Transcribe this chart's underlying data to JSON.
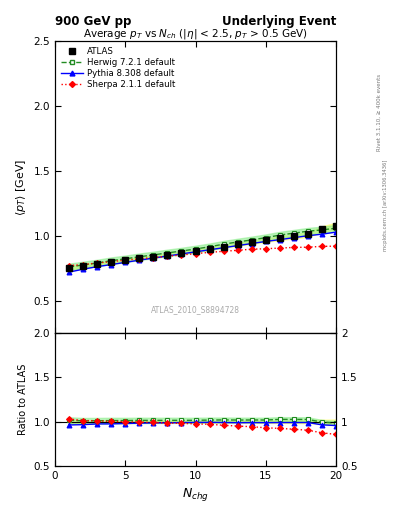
{
  "title_left": "900 GeV pp",
  "title_right": "Underlying Event",
  "plot_title": "Average $p_T$ vs $N_{ch}$ ($|\\eta|$ < 2.5, $p_T$ > 0.5 GeV)",
  "xlabel": "$N_{chg}$",
  "ylabel_main": "$\\langle p_T \\rangle$ [GeV]",
  "ylabel_ratio": "Ratio to ATLAS",
  "watermark": "ATLAS_2010_S8894728",
  "right_label_top": "Rivet 3.1.10, ≥ 400k events",
  "right_label_bot": "mcplots.cern.ch [arXiv:1306.3436]",
  "ylim_main": [
    0.25,
    2.5
  ],
  "ylim_ratio": [
    0.5,
    2.0
  ],
  "xlim": [
    0,
    20
  ],
  "atlas_x": [
    1,
    2,
    3,
    4,
    5,
    6,
    7,
    8,
    9,
    10,
    11,
    12,
    13,
    14,
    15,
    16,
    17,
    18,
    19,
    20
  ],
  "atlas_y": [
    0.748,
    0.768,
    0.782,
    0.798,
    0.812,
    0.826,
    0.84,
    0.855,
    0.869,
    0.884,
    0.899,
    0.917,
    0.935,
    0.95,
    0.967,
    0.98,
    0.995,
    1.01,
    1.05,
    1.075
  ],
  "atlas_yerr": [
    0.015,
    0.012,
    0.01,
    0.009,
    0.009,
    0.008,
    0.008,
    0.008,
    0.008,
    0.009,
    0.009,
    0.01,
    0.01,
    0.012,
    0.013,
    0.014,
    0.015,
    0.018,
    0.022,
    0.025
  ],
  "herwig_x": [
    1,
    2,
    3,
    4,
    5,
    6,
    7,
    8,
    9,
    10,
    11,
    12,
    13,
    14,
    15,
    16,
    17,
    18,
    19,
    20
  ],
  "herwig_y": [
    0.76,
    0.775,
    0.79,
    0.808,
    0.822,
    0.838,
    0.852,
    0.868,
    0.882,
    0.898,
    0.915,
    0.935,
    0.952,
    0.968,
    0.985,
    1.005,
    1.02,
    1.035,
    1.045,
    1.058
  ],
  "pythia_x": [
    1,
    2,
    3,
    4,
    5,
    6,
    7,
    8,
    9,
    10,
    11,
    12,
    13,
    14,
    15,
    16,
    17,
    18,
    19,
    20
  ],
  "pythia_y": [
    0.72,
    0.742,
    0.762,
    0.778,
    0.795,
    0.812,
    0.828,
    0.844,
    0.86,
    0.876,
    0.892,
    0.908,
    0.924,
    0.94,
    0.956,
    0.97,
    0.985,
    1.0,
    1.012,
    1.028
  ],
  "sherpa_x": [
    1,
    2,
    3,
    4,
    5,
    6,
    7,
    8,
    9,
    10,
    11,
    12,
    13,
    14,
    15,
    16,
    17,
    18,
    19,
    20
  ],
  "sherpa_y": [
    0.77,
    0.778,
    0.79,
    0.8,
    0.812,
    0.822,
    0.832,
    0.842,
    0.852,
    0.862,
    0.872,
    0.88,
    0.888,
    0.896,
    0.9,
    0.905,
    0.91,
    0.912,
    0.918,
    0.92
  ],
  "atlas_color": "#000000",
  "herwig_color": "#228B22",
  "pythia_color": "#0000FF",
  "sherpa_color": "#FF0000",
  "herwig_band_color": "#90EE90",
  "atlas_band_color": "#FFFF88",
  "background_color": "#ffffff"
}
